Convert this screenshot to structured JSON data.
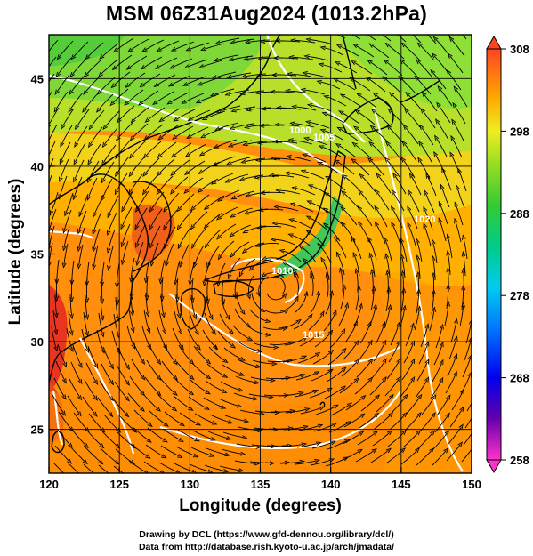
{
  "title": "MSM 06Z31Aug2024 (1013.2hPa)",
  "xlabel": "Longitude (degrees)",
  "ylabel": "Latitude  (degrees)",
  "credits": [
    "Drawing by DCL (https://www.gfd-dennou.org/library/dcl/)",
    "Data from http://database.rish.kyoto-u.ac.jp/arch/jmadata/"
  ],
  "colors": {
    "land_outline": "#000000",
    "contour": "#ffffff",
    "streamline": "#000000",
    "warm": "#ff7a00",
    "green": "#4ccc33"
  },
  "chart_data": {
    "type": "heatmap",
    "x_axis": {
      "label": "Longitude (degrees)",
      "range": [
        120,
        150
      ],
      "ticks": [
        120,
        125,
        130,
        135,
        140,
        145,
        150
      ]
    },
    "y_axis": {
      "label": "Latitude  (degrees)",
      "range": [
        22.5,
        47.5
      ],
      "ticks": [
        25,
        30,
        35,
        40,
        45
      ]
    },
    "colorbar": {
      "range": [
        258,
        308
      ],
      "ticks": [
        308,
        298,
        288,
        278,
        268,
        258
      ],
      "extend": "both"
    },
    "contour_labels": [
      "1000",
      "1005",
      "1010",
      "1015",
      "1020"
    ],
    "grid": true
  }
}
